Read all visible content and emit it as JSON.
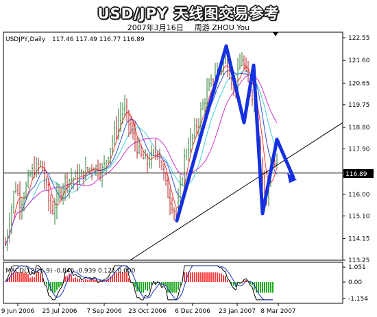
{
  "header": {
    "title": "USD/JPY 天线图交易参考",
    "date": "2007年3月16日",
    "author": "周游 ZHOU You"
  },
  "chart_data": {
    "type": "candlestick",
    "symbol_label": "USDJPY,Daily",
    "ohlc_label": "117.46 117.49 116.77 116.89",
    "current_price": "116.89",
    "current_price_value": 116.89,
    "price_axis": {
      "ylim": [
        113.25,
        122.55
      ],
      "ticks": [
        "122.55",
        "121.60",
        "120.65",
        "119.75",
        "118.80",
        "117.90",
        "116.00",
        "115.10",
        "114.15",
        "113.25"
      ]
    },
    "x_ticks": [
      "9 Jun 2006",
      "25 Jul 2006",
      "7 Sep 2006",
      "23 Oct 2006",
      "6 Dec 2006",
      "23 Jan 2007",
      "8 Mar 2007"
    ],
    "macd": {
      "label": "MACD(12,26,9) -0.846 -0.939 0.121 0.000",
      "ticks": [
        "1.051",
        "0.00",
        "-1.154"
      ],
      "ylim": [
        -1.35,
        1.25
      ]
    },
    "annotation_path": [
      {
        "date": "6 Dec 2006",
        "price": 114.9
      },
      {
        "date": "mid Jan 2007",
        "price": 122.2
      },
      {
        "date": "late Jan 2007",
        "price": 119.0
      },
      {
        "date": "early Feb 2007",
        "price": 121.4
      },
      {
        "date": "late Feb 2007",
        "price": 115.2
      },
      {
        "date": "early Mar 2007",
        "price": 118.3
      },
      {
        "date": "mid Mar 2007",
        "price": 116.7
      }
    ],
    "trendline": {
      "from": {
        "date": "Oct 2006",
        "price": 113.25
      },
      "to": {
        "date": "Mar 2007",
        "price": 119.0
      }
    },
    "colors": {
      "bull": "#2e7d32",
      "bear": "#b71c1c",
      "annotation": "#1530e0",
      "ma_red": "#ff3030",
      "ma_blue": "#2f4fe0",
      "ma_cyan": "#40d0d0",
      "ma_magenta": "#cc33cc",
      "macd_pos": "#ff4040",
      "macd_neg": "#22aa22"
    }
  }
}
